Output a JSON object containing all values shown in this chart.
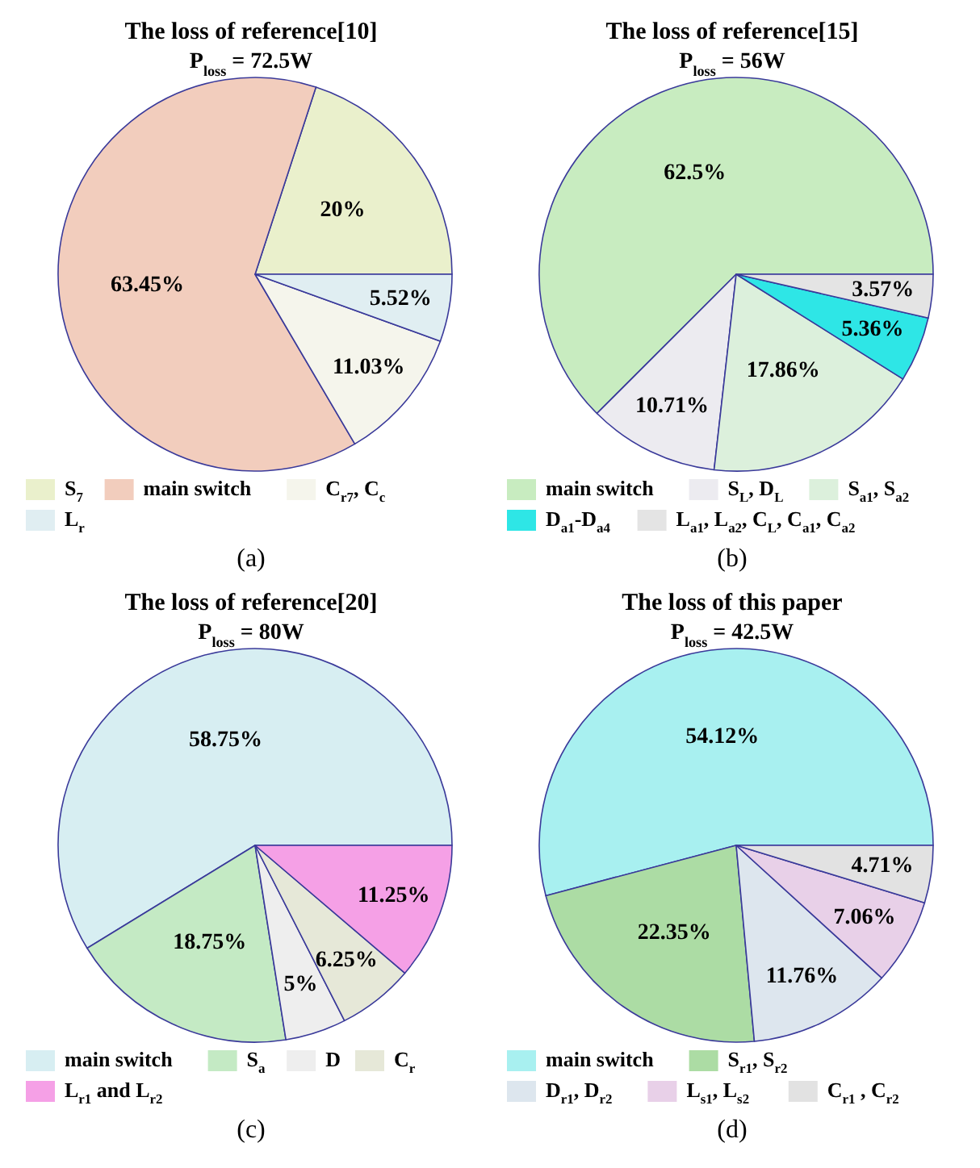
{
  "chart_data": [
    {
      "type": "pie",
      "title": "The loss of reference[10]",
      "subtitle": "P$_{loss}$ = 72.5W",
      "categories": [
        "S$_{7}$",
        "main  switch",
        "C$_{r7}$, C$_{c}$",
        "L$_{r}$"
      ],
      "values": [
        20,
        63.45,
        11.03,
        5.52
      ],
      "value_labels": [
        "20%",
        "63.45%",
        "11.03%",
        "5.52%"
      ],
      "colors": [
        "#eaf0cc",
        "#f2cdbd",
        "#f5f5ec",
        "#e0eef2"
      ],
      "legend": "bottom",
      "annotations": [
        "(a)"
      ]
    },
    {
      "type": "pie",
      "title": "The loss of reference[15]",
      "subtitle": "P$_{loss}$ = 56W",
      "categories": [
        "main  switch",
        "S$_{L}$, D$_{L}$",
        "S$_{a1}$, S$_{a2}$",
        "D$_{a1}$-D$_{a4}$",
        "L$_{a1}$, L$_{a2}$, C$_{L}$, C$_{a1}$, C$_{a2}$"
      ],
      "values": [
        62.5,
        10.71,
        17.86,
        5.36,
        3.57
      ],
      "value_labels": [
        "62.5%",
        "10.71%",
        "17.86%",
        "5.36%",
        "3.57%"
      ],
      "colors": [
        "#c8ecc0",
        "#ecebf0",
        "#dcf0dc",
        "#2ee6e6",
        "#e4e4e4"
      ],
      "legend": "bottom",
      "annotations": [
        "(b)"
      ]
    },
    {
      "type": "pie",
      "title": "The loss of reference[20]",
      "subtitle": "P$_{loss}$ = 80W",
      "categories": [
        "main  switch",
        "S$_{a}$",
        "D",
        "C$_{r}$",
        "L$_{r1}$ and L$_{r2}$"
      ],
      "values": [
        58.75,
        18.75,
        5,
        6.25,
        11.25
      ],
      "value_labels": [
        "58.75%",
        "18.75%",
        "5%",
        "6.25%",
        "11.25%"
      ],
      "colors": [
        "#d7eef2",
        "#c4eac4",
        "#eeeeee",
        "#e6e8d8",
        "#f5a0e6"
      ],
      "legend": "bottom",
      "annotations": [
        "(c)"
      ]
    },
    {
      "type": "pie",
      "title": "The loss of this paper",
      "subtitle": "P$_{loss}$ = 42.5W",
      "categories": [
        "main  switch",
        "S$_{r1}$, S$_{r2}$",
        "D$_{r1}$, D$_{r2}$",
        "L$_{s1}$, L$_{s2}$",
        "C$_{r1}$ , C$_{r2}$"
      ],
      "values": [
        54.12,
        22.35,
        11.76,
        7.06,
        4.71
      ],
      "value_labels": [
        "54.12%",
        "22.35%",
        "11.76%",
        "7.06%",
        "4.71%"
      ],
      "colors": [
        "#a8f0f0",
        "#acdca4",
        "#dde6ee",
        "#e8d0e8",
        "#e2e2e2"
      ],
      "legend": "bottom",
      "annotations": [
        "(d)"
      ]
    }
  ]
}
